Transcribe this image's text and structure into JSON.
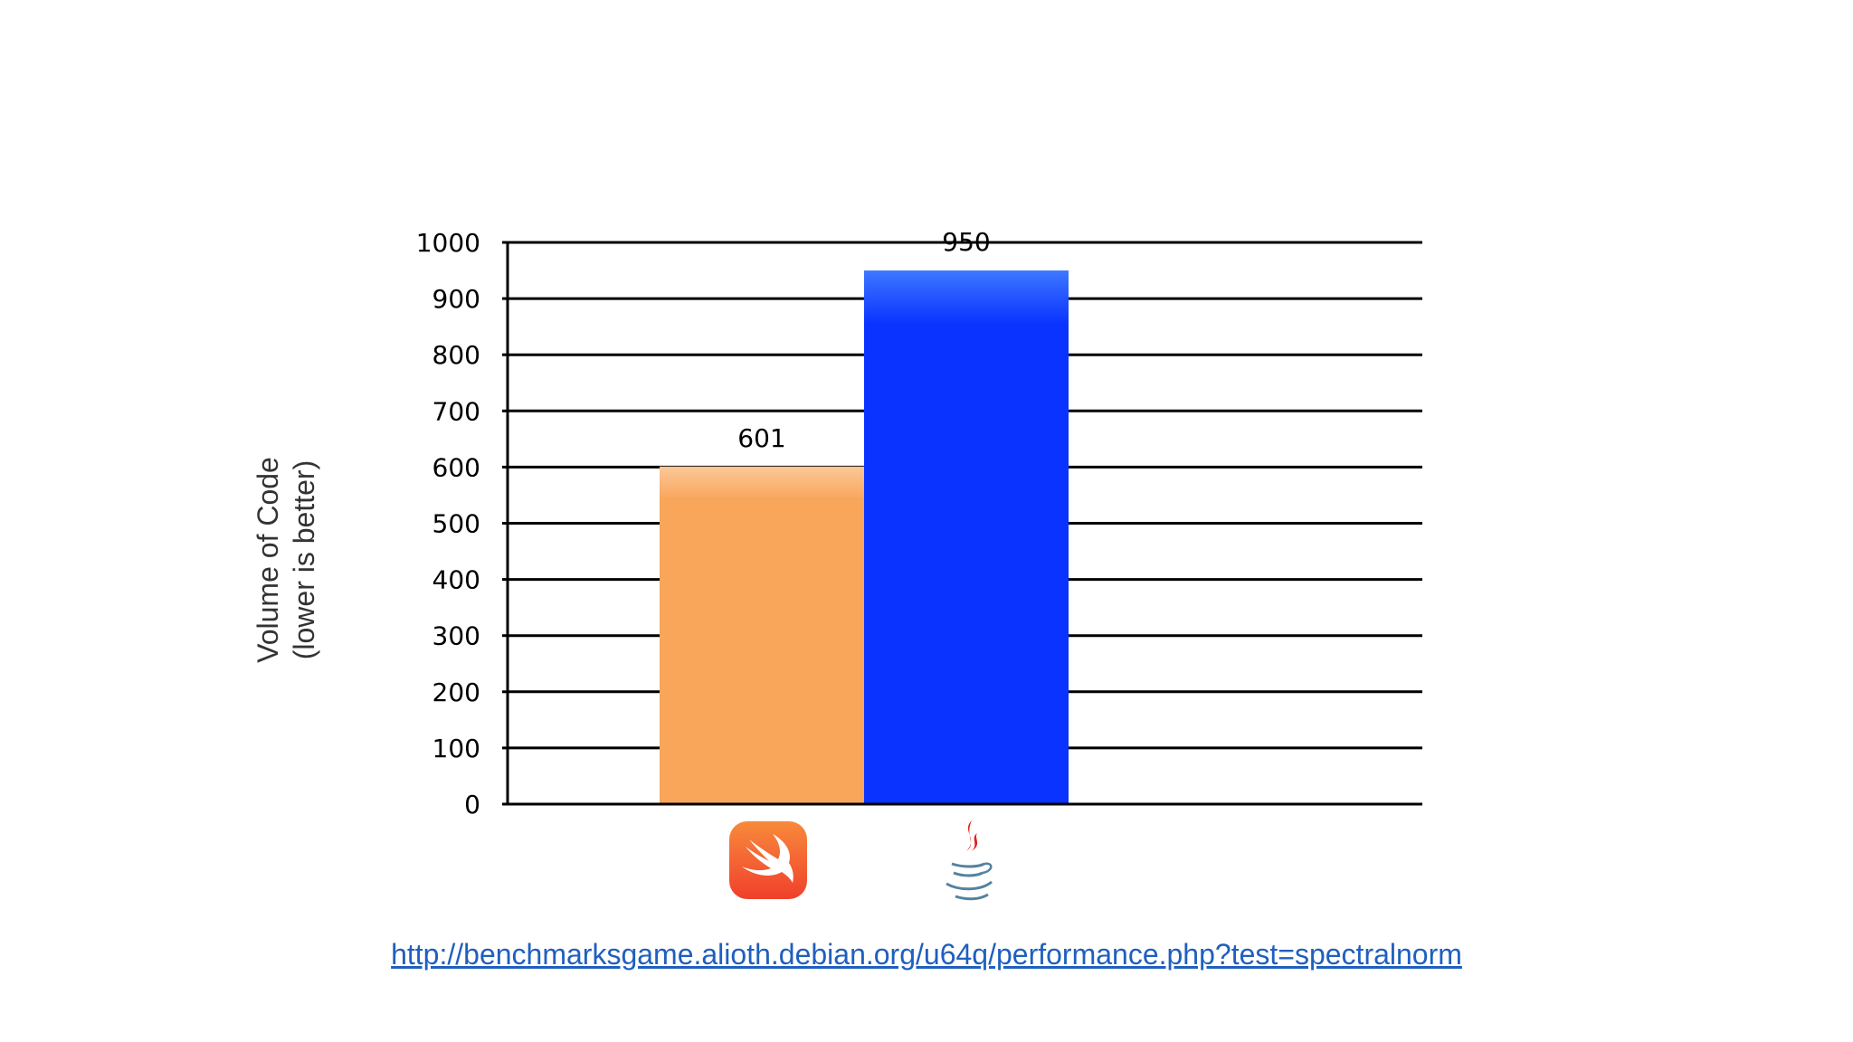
{
  "chart_data": {
    "type": "bar",
    "categories": [
      "Swift",
      "Java"
    ],
    "values": [
      601,
      950
    ],
    "data_labels": [
      "601",
      "950"
    ],
    "bar_colors": [
      "#f9a55a",
      "#0a33ff"
    ],
    "ylabel_lines": [
      "Volume of Code",
      "(lower is better)"
    ],
    "xlabel": "",
    "title": "",
    "ylim": [
      0,
      1000
    ],
    "yticks": [
      0,
      100,
      200,
      300,
      400,
      500,
      600,
      700,
      800,
      900,
      1000
    ],
    "grid": true,
    "category_icons": [
      "swift-icon",
      "java-icon"
    ]
  },
  "source_link": "http://benchmarksgame.alioth.debian.org/u64q/performance.php?test=spectralnorm"
}
